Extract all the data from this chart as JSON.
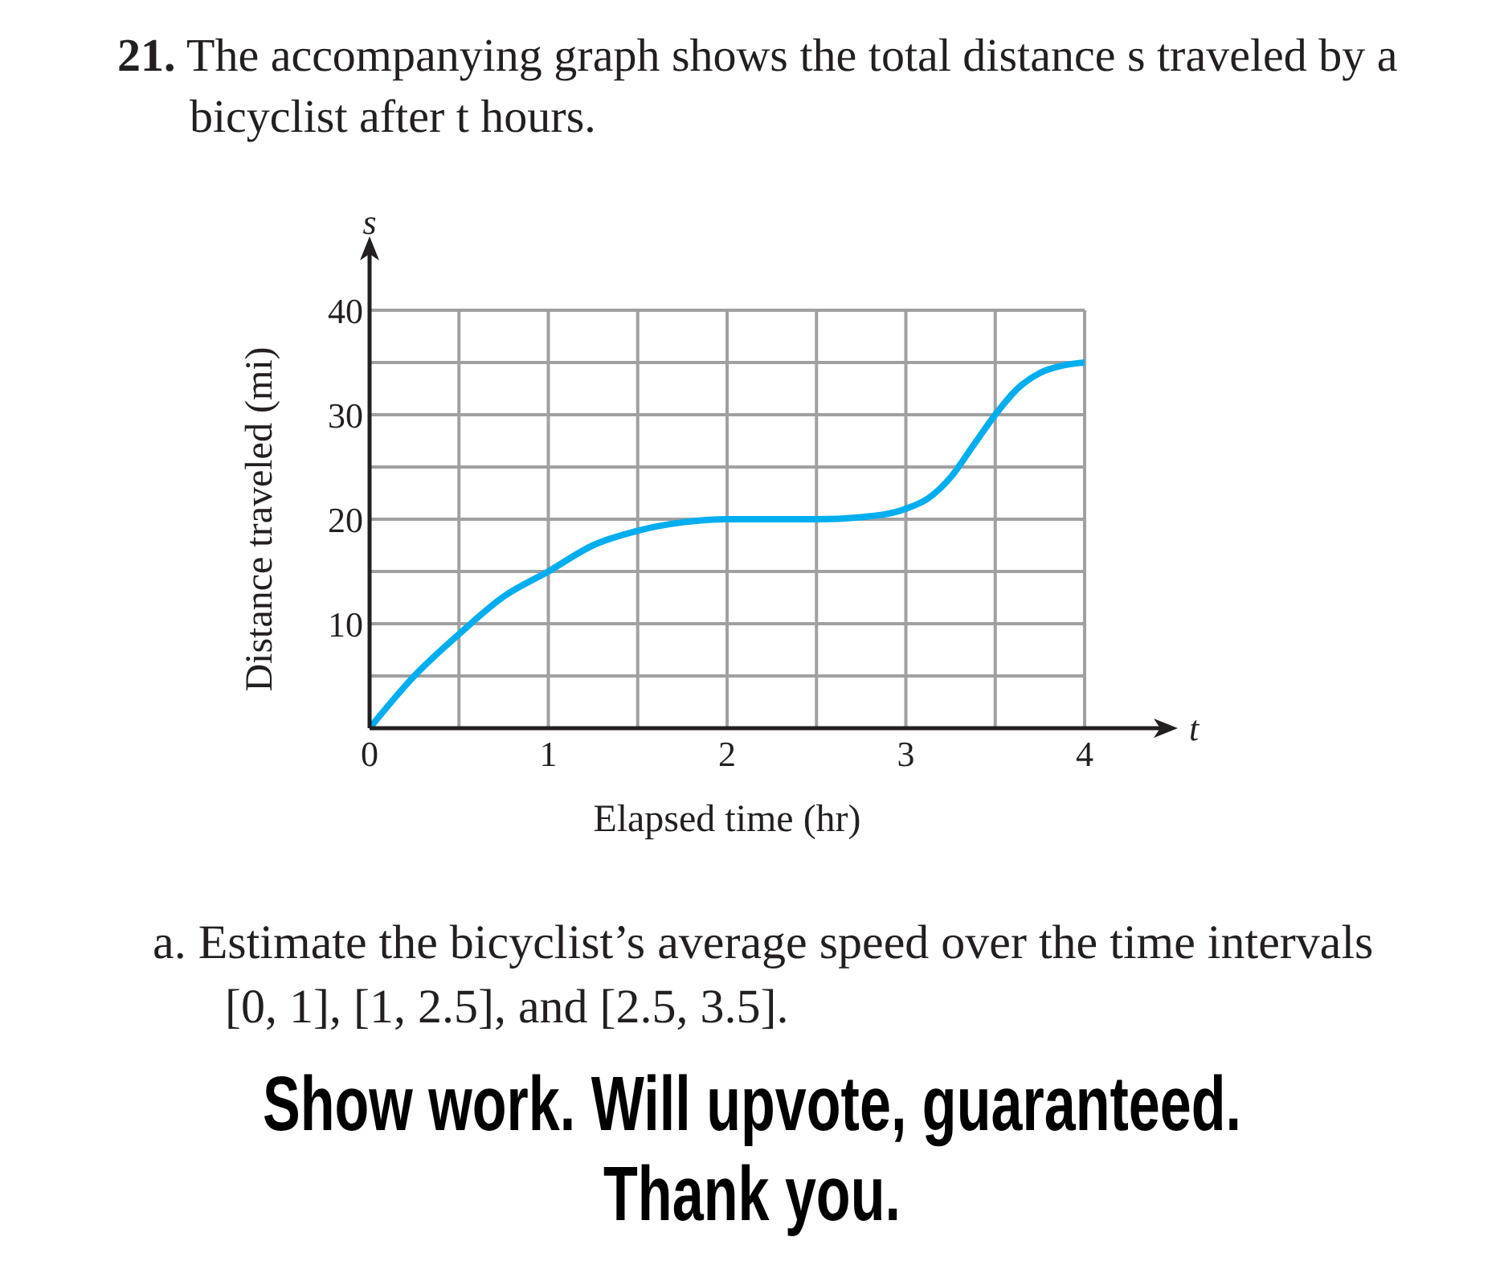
{
  "chart_data": {
    "type": "line",
    "title": "21. The accompanying graph shows the total distance s traveled by a bicyclist after t hours.",
    "xlabel": "Elapsed time (hr)",
    "ylabel": "Distance traveled (mi)",
    "annotations": [
      "s",
      "t",
      "a. Estimate the bicyclist’s average speed over the time intervals [0, 1], [1, 2.5], and [2.5, 3.5].",
      "Show work. Will upvote, guaranteed. Thank you."
    ],
    "x": [
      0,
      0.25,
      0.5,
      0.75,
      1,
      1.25,
      1.5,
      1.75,
      2,
      2.25,
      2.5,
      2.75,
      3,
      3.125,
      3.25,
      3.375,
      3.5,
      3.625,
      3.75,
      3.875,
      4
    ],
    "values": [
      0,
      5,
      9,
      12.6,
      15,
      17.5,
      18.9,
      19.7,
      20,
      20,
      20,
      20.2,
      21,
      22,
      24,
      27,
      30,
      32.5,
      34,
      34.7,
      35
    ],
    "color": "#00aeef",
    "marker": "none",
    "line_style": "solid",
    "xlim": [
      0,
      4
    ],
    "xticks": [
      0,
      {
        "value": 0.5,
        "label": null
      },
      1,
      {
        "value": 1.5,
        "label": null
      },
      2,
      {
        "value": 2.5,
        "label": null
      },
      3,
      {
        "value": 3.5,
        "label": null
      },
      4
    ],
    "ylim": [
      0,
      40
    ],
    "yticks": [
      {
        "value": 0,
        "label": null
      },
      {
        "value": 5,
        "label": null
      },
      10,
      {
        "value": 15,
        "label": null
      },
      20,
      {
        "value": 25,
        "label": null
      },
      30,
      {
        "value": 35,
        "label": null
      },
      40
    ],
    "grid": true
  }
}
